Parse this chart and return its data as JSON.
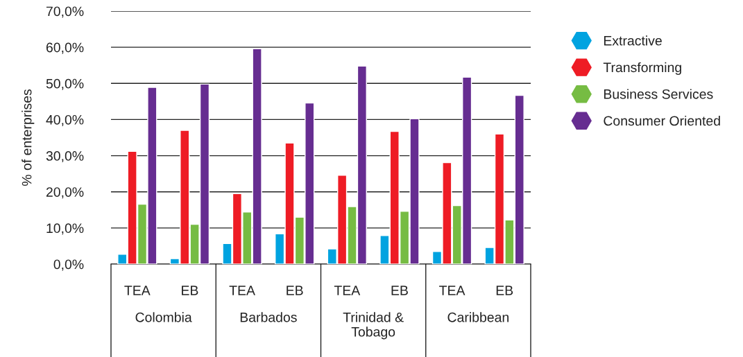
{
  "chart_data": {
    "type": "bar",
    "ylabel": "% of enterprises",
    "categories": [
      "TEA",
      "EB",
      "TEA",
      "EB",
      "TEA",
      "EB",
      "TEA",
      "EB"
    ],
    "annotations": [
      "Colombia",
      "Barbados",
      "Trinidad & Tobago",
      "Caribbean"
    ],
    "series": [
      {
        "name": "Extractive",
        "color": "#00a3e0",
        "values": [
          2.7,
          1.5,
          5.7,
          8.4,
          4.2,
          7.9,
          3.5,
          4.6
        ]
      },
      {
        "name": "Transforming",
        "color": "#ee1c25",
        "values": [
          31.2,
          37.0,
          19.5,
          33.5,
          24.6,
          36.7,
          28.1,
          36.0
        ]
      },
      {
        "name": "Business Services",
        "color": "#76bc43",
        "values": [
          16.6,
          11.0,
          14.4,
          13.0,
          15.9,
          14.6,
          16.2,
          12.2
        ]
      },
      {
        "name": "Consumer Oriented",
        "color": "#662d91",
        "values": [
          48.9,
          49.8,
          59.6,
          44.6,
          54.8,
          40.2,
          51.7,
          46.7
        ]
      }
    ],
    "ylim": [
      0,
      70
    ],
    "yticks": [
      {
        "value": 0,
        "label": "0,0%"
      },
      {
        "value": 10,
        "label": "10,0%"
      },
      {
        "value": 20,
        "label": "20,0%"
      },
      {
        "value": 30,
        "label": "30,0%"
      },
      {
        "value": 40,
        "label": "40,0%"
      },
      {
        "value": 50,
        "label": "50,0%"
      },
      {
        "value": 60,
        "label": "60,0%"
      },
      {
        "value": 70,
        "label": "70,0%"
      }
    ],
    "grid": "y",
    "legend": "right"
  }
}
